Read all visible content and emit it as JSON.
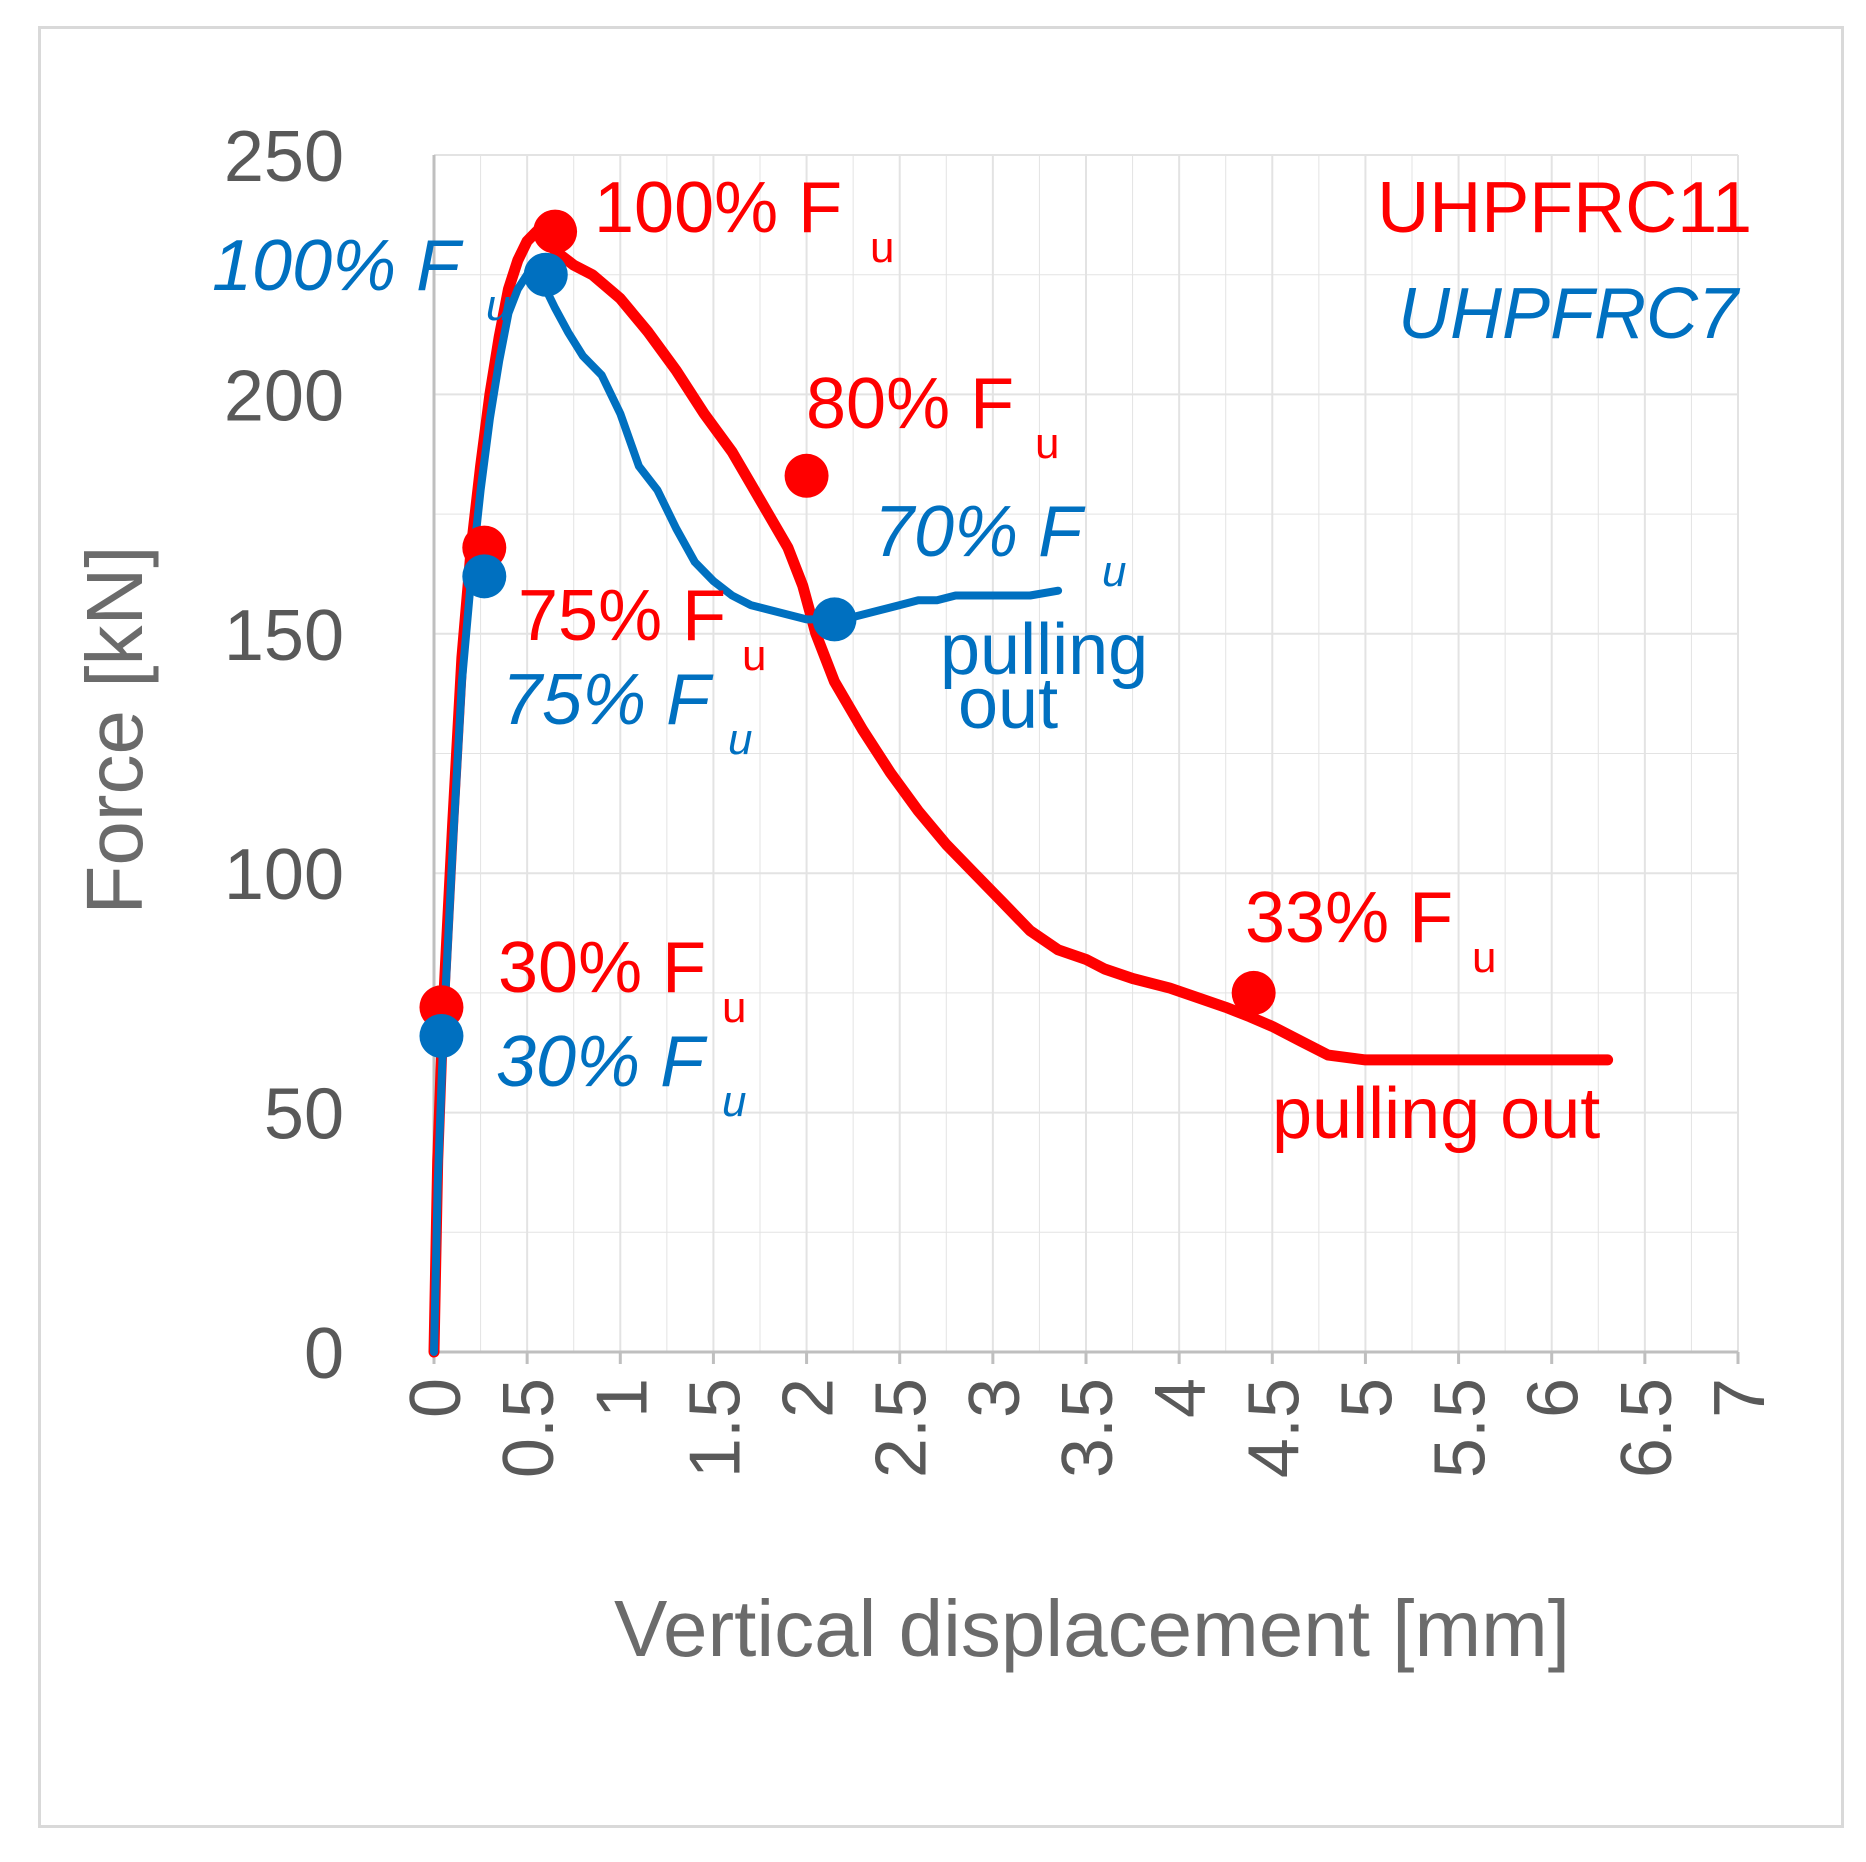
{
  "chart_data": {
    "type": "line",
    "xlabel": "Vertical displacement [mm]",
    "ylabel": "Force [kN]",
    "xlim": [
      0,
      7
    ],
    "ylim": [
      0,
      250
    ],
    "x_ticks": [
      "0",
      "0.5",
      "1",
      "1.5",
      "2",
      "2.5",
      "3",
      "3.5",
      "4",
      "4.5",
      "5",
      "5.5",
      "6",
      "6.5",
      "7"
    ],
    "y_ticks": [
      "0",
      "50",
      "100",
      "150",
      "200",
      "250"
    ],
    "grid": true,
    "colors": {
      "red": "#ff0000",
      "blue": "#0070c0",
      "grid": "#e3e3e3",
      "axis": "#bfbfbf"
    },
    "series": [
      {
        "name": "UHPFRC11",
        "color": "#ff0000",
        "x": [
          0,
          0.02,
          0.05,
          0.1,
          0.15,
          0.2,
          0.25,
          0.3,
          0.35,
          0.4,
          0.45,
          0.5,
          0.55,
          0.6,
          0.65,
          0.75,
          0.85,
          1.0,
          1.15,
          1.3,
          1.45,
          1.6,
          1.75,
          1.9,
          1.98,
          2.05,
          2.15,
          2.3,
          2.45,
          2.6,
          2.75,
          2.9,
          3.05,
          3.2,
          3.35,
          3.5,
          3.6,
          3.75,
          3.95,
          4.1,
          4.25,
          4.38,
          4.5,
          4.65,
          4.8,
          5.0,
          5.2,
          5.4,
          5.6,
          5.8,
          6.0,
          6.2,
          6.3
        ],
        "y": [
          0,
          40,
          72,
          110,
          145,
          168,
          185,
          200,
          212,
          222,
          228,
          232,
          234,
          233,
          230,
          227,
          225,
          220,
          213,
          205,
          196,
          188,
          178,
          168,
          160,
          150,
          140,
          130,
          121,
          113,
          106,
          100,
          94,
          88,
          84,
          82,
          80,
          78,
          76,
          74,
          72,
          70,
          68,
          65,
          62,
          61,
          61,
          61,
          61,
          61,
          61,
          61,
          61
        ]
      },
      {
        "name": "UHPFRC7",
        "color": "#0070c0",
        "x": [
          0,
          0.02,
          0.05,
          0.1,
          0.15,
          0.2,
          0.25,
          0.3,
          0.35,
          0.4,
          0.45,
          0.5,
          0.55,
          0.6,
          0.65,
          0.72,
          0.8,
          0.9,
          1.0,
          1.1,
          1.2,
          1.3,
          1.4,
          1.5,
          1.6,
          1.7,
          1.8,
          1.9,
          2.0,
          2.1,
          2.2,
          2.3,
          2.4,
          2.5,
          2.6,
          2.7,
          2.8,
          2.9,
          3.0,
          3.1,
          3.2,
          3.35
        ],
        "y": [
          0,
          35,
          66,
          105,
          140,
          162,
          180,
          195,
          207,
          217,
          222,
          225,
          224,
          222,
          218,
          213,
          208,
          204,
          196,
          185,
          180,
          172,
          165,
          161,
          158,
          156,
          155,
          154,
          153,
          153,
          153,
          154,
          155,
          156,
          157,
          157,
          158,
          158,
          158,
          158,
          158,
          159
        ]
      }
    ],
    "markers": [
      {
        "series": "UHPFRC11",
        "x": 0.04,
        "y": 72,
        "text": "30% F",
        "sub": "u"
      },
      {
        "series": "UHPFRC11",
        "x": 0.27,
        "y": 168,
        "text": "75% F",
        "sub": "u"
      },
      {
        "series": "UHPFRC11",
        "x": 0.65,
        "y": 234,
        "text": "100% F",
        "sub": "u"
      },
      {
        "series": "UHPFRC11",
        "x": 2.0,
        "y": 183,
        "text": "80% F",
        "sub": "u"
      },
      {
        "series": "UHPFRC11",
        "x": 4.4,
        "y": 75,
        "text": "33% F",
        "sub": "u"
      },
      {
        "series": "UHPFRC7",
        "x": 0.04,
        "y": 66,
        "text": "30% F",
        "sub": "u"
      },
      {
        "series": "UHPFRC7",
        "x": 0.27,
        "y": 162,
        "text": "75% F",
        "sub": "u"
      },
      {
        "series": "UHPFRC7",
        "x": 0.6,
        "y": 225,
        "text": "100% F",
        "sub": "u"
      },
      {
        "series": "UHPFRC7",
        "x": 2.15,
        "y": 153,
        "text": "70% F",
        "sub": "u"
      }
    ],
    "annotations": {
      "red_pulling": "pulling out",
      "blue_pulling_1": "pulling",
      "blue_pulling_2": "out"
    },
    "legend": [
      "UHPFRC11",
      "UHPFRC7"
    ],
    "legend_position": "top-right"
  }
}
